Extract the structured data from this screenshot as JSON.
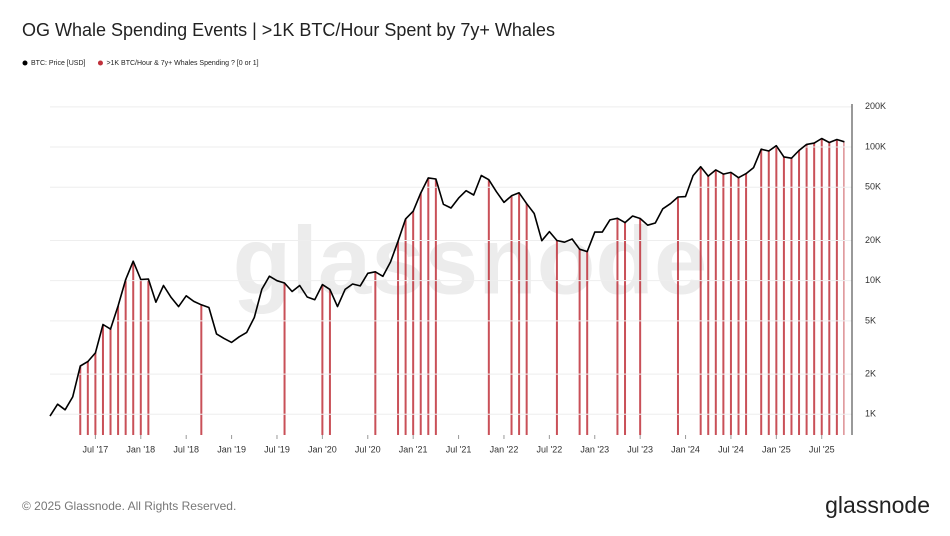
{
  "chart_data": {
    "type": "line",
    "title": "OG Whale Spending Events | >1K BTC/Hour Spent by 7y+ Whales",
    "watermark": "glassnode",
    "footer": "© 2025 Glassnode. All Rights Reserved.",
    "logo": "glassnode",
    "x": [
      "2017-01",
      "2017-02",
      "2017-03",
      "2017-04",
      "2017-05",
      "2017-06",
      "2017-07",
      "2017-08",
      "2017-09",
      "2017-10",
      "2017-11",
      "2017-12",
      "2018-01",
      "2018-02",
      "2018-03",
      "2018-04",
      "2018-05",
      "2018-06",
      "2018-07",
      "2018-08",
      "2018-09",
      "2018-10",
      "2018-11",
      "2018-12",
      "2019-01",
      "2019-02",
      "2019-03",
      "2019-04",
      "2019-05",
      "2019-06",
      "2019-07",
      "2019-08",
      "2019-09",
      "2019-10",
      "2019-11",
      "2019-12",
      "2020-01",
      "2020-02",
      "2020-03",
      "2020-04",
      "2020-05",
      "2020-06",
      "2020-07",
      "2020-08",
      "2020-09",
      "2020-10",
      "2020-11",
      "2020-12",
      "2021-01",
      "2021-02",
      "2021-03",
      "2021-04",
      "2021-05",
      "2021-06",
      "2021-07",
      "2021-08",
      "2021-09",
      "2021-10",
      "2021-11",
      "2021-12",
      "2022-01",
      "2022-02",
      "2022-03",
      "2022-04",
      "2022-05",
      "2022-06",
      "2022-07",
      "2022-08",
      "2022-09",
      "2022-10",
      "2022-11",
      "2022-12",
      "2023-01",
      "2023-02",
      "2023-03",
      "2023-04",
      "2023-05",
      "2023-06",
      "2023-07",
      "2023-08",
      "2023-09",
      "2023-10",
      "2023-11",
      "2023-12",
      "2024-01",
      "2024-02",
      "2024-03",
      "2024-04",
      "2024-05",
      "2024-06",
      "2024-07",
      "2024-08",
      "2024-09",
      "2024-10",
      "2024-11",
      "2024-12",
      "2025-01",
      "2025-02",
      "2025-03",
      "2025-04",
      "2025-05",
      "2025-06",
      "2025-07",
      "2025-08",
      "2025-09",
      "2025-10"
    ],
    "xlim": [
      "2017-01",
      "2025-11"
    ],
    "xticks": [
      {
        "value": "2017-07",
        "label": "Jul '17"
      },
      {
        "value": "2018-01",
        "label": "Jan '18"
      },
      {
        "value": "2018-07",
        "label": "Jul '18"
      },
      {
        "value": "2019-01",
        "label": "Jan '19"
      },
      {
        "value": "2019-07",
        "label": "Jul '19"
      },
      {
        "value": "2020-01",
        "label": "Jan '20"
      },
      {
        "value": "2020-07",
        "label": "Jul '20"
      },
      {
        "value": "2021-01",
        "label": "Jan '21"
      },
      {
        "value": "2021-07",
        "label": "Jul '21"
      },
      {
        "value": "2022-01",
        "label": "Jan '22"
      },
      {
        "value": "2022-07",
        "label": "Jul '22"
      },
      {
        "value": "2023-01",
        "label": "Jan '23"
      },
      {
        "value": "2023-07",
        "label": "Jul '23"
      },
      {
        "value": "2024-01",
        "label": "Jan '24"
      },
      {
        "value": "2024-07",
        "label": "Jul '24"
      },
      {
        "value": "2025-01",
        "label": "Jan '25"
      },
      {
        "value": "2025-07",
        "label": "Jul '25"
      }
    ],
    "ylim": [
      700,
      210000
    ],
    "log_scale": true,
    "yticks": [
      {
        "value": 1000,
        "label": "1K"
      },
      {
        "value": 2000,
        "label": "2K"
      },
      {
        "value": 5000,
        "label": "5K"
      },
      {
        "value": 10000,
        "label": "10K"
      },
      {
        "value": 20000,
        "label": "20K"
      },
      {
        "value": 50000,
        "label": "50K"
      },
      {
        "value": 100000,
        "label": "100K"
      },
      {
        "value": 200000,
        "label": "200K"
      }
    ],
    "y2lim": [
      0,
      1
    ],
    "grid": true,
    "series": [
      {
        "name": "BTC: Price [USD]",
        "color": "#000000",
        "values": [
          970,
          1190,
          1080,
          1350,
          2300,
          2480,
          2880,
          4700,
          4340,
          6470,
          10200,
          14000,
          10200,
          10300,
          6900,
          9200,
          7500,
          6400,
          7700,
          7000,
          6600,
          6300,
          4000,
          3700,
          3450,
          3800,
          4100,
          5300,
          8600,
          10800,
          10000,
          9600,
          8300,
          9200,
          7550,
          7200,
          9350,
          8600,
          6400,
          8600,
          9450,
          9140,
          11350,
          11650,
          10780,
          13800,
          19700,
          29000,
          33100,
          45200,
          58800,
          57700,
          37300,
          35000,
          41500,
          47100,
          43800,
          61300,
          57000,
          46300,
          38500,
          43200,
          45500,
          37700,
          31800,
          19900,
          23300,
          20000,
          19400,
          20500,
          17200,
          16500,
          23100,
          23100,
          28500,
          29300,
          27200,
          30500,
          29200,
          26000,
          27000,
          34500,
          37700,
          42300,
          42600,
          61200,
          71300,
          60600,
          67500,
          62700,
          64600,
          59000,
          63300,
          70200,
          96400,
          93400,
          102400,
          84400,
          82500,
          94200,
          104600,
          107100,
          115800,
          108200,
          114000,
          109500
        ]
      },
      {
        "name": ">1K BTC/Hour & 7y+ Whales Spending ? [0 or 1]",
        "color": "#c0313b",
        "axis": "y2",
        "values": [
          0,
          0,
          0,
          0,
          1,
          1,
          1,
          1,
          1,
          1,
          1,
          1,
          1,
          1,
          0,
          0,
          0,
          0,
          0,
          0,
          1,
          0,
          0,
          0,
          0,
          0,
          0,
          0,
          0,
          0,
          0,
          1,
          0,
          0,
          0,
          0,
          1,
          1,
          0,
          0,
          0,
          0,
          0,
          1,
          0,
          0,
          1,
          1,
          1,
          1,
          1,
          1,
          0,
          0,
          0,
          0,
          0,
          0,
          1,
          0,
          0,
          1,
          1,
          1,
          0,
          0,
          0,
          1,
          0,
          0,
          1,
          1,
          0,
          0,
          0,
          1,
          1,
          0,
          1,
          0,
          0,
          0,
          0,
          1,
          0,
          0,
          1,
          1,
          1,
          1,
          1,
          1,
          1,
          0,
          1,
          1,
          1,
          1,
          1,
          1,
          1,
          1,
          1,
          1,
          1,
          1
        ]
      }
    ]
  }
}
